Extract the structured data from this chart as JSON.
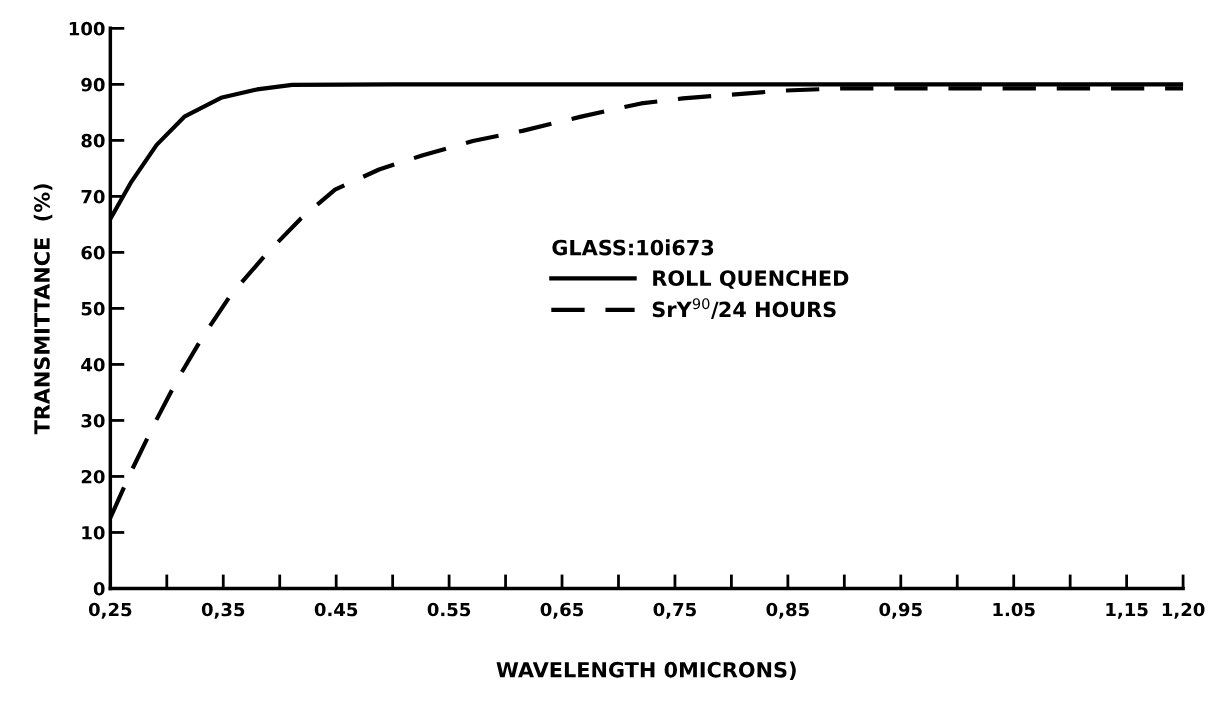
{
  "chart_data": {
    "type": "line",
    "xlabel": "WAVELENGTH 0MICRONS)",
    "ylabel": "TRANSMITTANCE  (%)",
    "legend_title": "GLASS:10i673",
    "xlim": [
      0.25,
      1.2
    ],
    "ylim": [
      0,
      100
    ],
    "xticks": [
      {
        "value": 0.25,
        "label": "0,25"
      },
      {
        "value": 0.3,
        "label": null
      },
      {
        "value": 0.35,
        "label": "0,35"
      },
      {
        "value": 0.4,
        "label": null
      },
      {
        "value": 0.45,
        "label": "0.45"
      },
      {
        "value": 0.5,
        "label": null
      },
      {
        "value": 0.55,
        "label": "0.55"
      },
      {
        "value": 0.6,
        "label": null
      },
      {
        "value": 0.65,
        "label": "0,65"
      },
      {
        "value": 0.7,
        "label": null
      },
      {
        "value": 0.75,
        "label": "0,75"
      },
      {
        "value": 0.8,
        "label": null
      },
      {
        "value": 0.85,
        "label": "0,85"
      },
      {
        "value": 0.9,
        "label": null
      },
      {
        "value": 0.95,
        "label": "0,95"
      },
      {
        "value": 1.0,
        "label": null
      },
      {
        "value": 1.05,
        "label": "1.05"
      },
      {
        "value": 1.1,
        "label": null
      },
      {
        "value": 1.15,
        "label": "1,15"
      },
      {
        "value": 1.2,
        "label": "1,20"
      }
    ],
    "yticks": [
      0,
      10,
      20,
      30,
      40,
      50,
      60,
      70,
      80,
      90,
      100
    ],
    "grid": false,
    "legend": "center",
    "series": [
      {
        "name": "ROLL QUENCHED",
        "color": "#000000",
        "line_style": "solid",
        "x": [
          0.25,
          0.268,
          0.291,
          0.316,
          0.348,
          0.38,
          0.411,
          0.5,
          0.7,
          0.9,
          1.2
        ],
        "values": [
          66,
          72.4,
          79.2,
          84.3,
          87.6,
          89.1,
          89.9,
          90,
          90,
          90,
          90
        ]
      },
      {
        "name": "SrY$^{90}$/24 HOURS",
        "color": "#000000",
        "line_style": "dashed",
        "x": [
          0.25,
          0.268,
          0.289,
          0.31,
          0.332,
          0.357,
          0.389,
          0.419,
          0.449,
          0.488,
          0.526,
          0.571,
          0.615,
          0.666,
          0.72,
          0.757,
          0.847,
          0.9,
          1.0,
          1.2
        ],
        "values": [
          12.6,
          20.7,
          29.4,
          37.5,
          45,
          52.5,
          59.9,
          66.1,
          71.2,
          74.8,
          77.3,
          79.9,
          81.7,
          84.2,
          86.6,
          87.5,
          88.9,
          89.3,
          89.3,
          89.3
        ]
      }
    ]
  }
}
